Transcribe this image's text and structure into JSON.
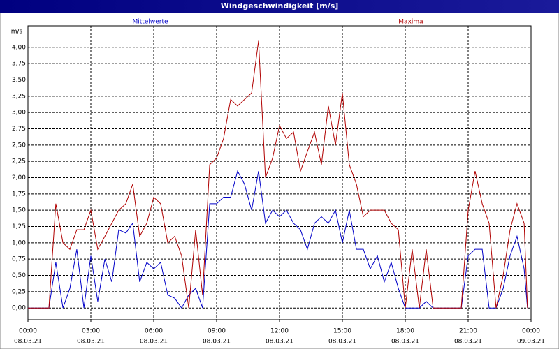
{
  "window_title": "Windgeschwindigkeit [m/s]",
  "chart_data": {
    "type": "line",
    "y_label": "m/s",
    "x": [
      0,
      0.33,
      0.67,
      1,
      1.33,
      1.67,
      2,
      2.33,
      2.67,
      3,
      3.33,
      3.67,
      4,
      4.33,
      4.67,
      5,
      5.33,
      5.67,
      6,
      6.33,
      6.67,
      7,
      7.33,
      7.67,
      8,
      8.33,
      8.67,
      9,
      9.33,
      9.67,
      10,
      10.33,
      10.67,
      11,
      11.33,
      11.67,
      12,
      12.33,
      12.67,
      13,
      13.33,
      13.67,
      14,
      14.33,
      14.67,
      15,
      15.33,
      15.67,
      16,
      16.33,
      16.67,
      17,
      17.33,
      17.67,
      18,
      18.33,
      18.67,
      19,
      19.33,
      19.67,
      20,
      20.33,
      20.67,
      21,
      21.33,
      21.67,
      22,
      22.33,
      22.67,
      23,
      23.33,
      23.67,
      23.83
    ],
    "series": [
      {
        "name": "Mittelwerte",
        "color": "#0000c8",
        "values": [
          0,
          0,
          0,
          0,
          0.7,
          0,
          0.3,
          0.9,
          0,
          0.8,
          0.1,
          0.75,
          0.4,
          1.2,
          1.15,
          1.3,
          0.4,
          0.7,
          0.6,
          0.7,
          0.2,
          0.15,
          0,
          0.2,
          0.3,
          0,
          1.6,
          1.6,
          1.7,
          1.7,
          2.1,
          1.9,
          1.5,
          2.1,
          1.3,
          1.5,
          1.4,
          1.5,
          1.3,
          1.2,
          0.9,
          1.3,
          1.4,
          1.3,
          1.5,
          1.0,
          1.5,
          0.9,
          0.9,
          0.6,
          0.8,
          0.4,
          0.7,
          0.3,
          0,
          0,
          0,
          0.1,
          0,
          0,
          0,
          0,
          0,
          0.8,
          0.9,
          0.9,
          0,
          0,
          0.3,
          0.8,
          1.1,
          0.6,
          0
        ]
      },
      {
        "name": "Maxima",
        "color": "#b00000",
        "values": [
          0,
          0,
          0,
          0,
          1.6,
          1.0,
          0.9,
          1.2,
          1.2,
          1.5,
          0.9,
          1.1,
          1.3,
          1.5,
          1.6,
          1.9,
          1.1,
          1.3,
          1.7,
          1.6,
          1.0,
          1.1,
          0.8,
          0,
          1.2,
          0.2,
          2.2,
          2.3,
          2.6,
          3.2,
          3.1,
          3.2,
          3.3,
          4.1,
          2.0,
          2.3,
          2.8,
          2.6,
          2.7,
          2.1,
          2.4,
          2.7,
          2.2,
          3.1,
          2.5,
          3.3,
          2.2,
          1.9,
          1.4,
          1.5,
          1.5,
          1.5,
          1.3,
          1.2,
          0,
          0.9,
          0,
          0.9,
          0,
          0,
          0,
          0,
          0,
          1.5,
          2.1,
          1.6,
          1.3,
          0,
          0.5,
          1.2,
          1.6,
          1.3,
          0
        ]
      }
    ],
    "xlim": [
      0,
      24
    ],
    "xticks": [
      {
        "value": 0,
        "label": "00:00"
      },
      {
        "value": 3,
        "label": "03:00"
      },
      {
        "value": 6,
        "label": "06:00"
      },
      {
        "value": 9,
        "label": "09:00"
      },
      {
        "value": 12,
        "label": "12:00"
      },
      {
        "value": 15,
        "label": "15:00"
      },
      {
        "value": 18,
        "label": "18:00"
      },
      {
        "value": 21,
        "label": "21:00"
      },
      {
        "value": 24,
        "label": "00:00"
      }
    ],
    "xtick_dates": [
      "08.03.21",
      "08.03.21",
      "08.03.21",
      "08.03.21",
      "08.03.21",
      "08.03.21",
      "08.03.21",
      "08.03.21",
      "09.03.21"
    ],
    "ylim": [
      -0.18,
      4.33
    ],
    "yticks": [
      {
        "value": 0,
        "label": "0,00"
      },
      {
        "value": 0.25,
        "label": "0,25"
      },
      {
        "value": 0.5,
        "label": "0,50"
      },
      {
        "value": 0.75,
        "label": "0,75"
      },
      {
        "value": 1,
        "label": "1,00"
      },
      {
        "value": 1.25,
        "label": "1,25"
      },
      {
        "value": 1.5,
        "label": "1,50"
      },
      {
        "value": 1.75,
        "label": "1,75"
      },
      {
        "value": 2,
        "label": "2,00"
      },
      {
        "value": 2.25,
        "label": "2,25"
      },
      {
        "value": 2.5,
        "label": "2,50"
      },
      {
        "value": 2.75,
        "label": "2,75"
      },
      {
        "value": 3,
        "label": "3,00"
      },
      {
        "value": 3.25,
        "label": "3,25"
      },
      {
        "value": 3.5,
        "label": "3,50"
      },
      {
        "value": 3.75,
        "label": "3,75"
      },
      {
        "value": 4,
        "label": "4,00"
      }
    ],
    "grid": true
  }
}
